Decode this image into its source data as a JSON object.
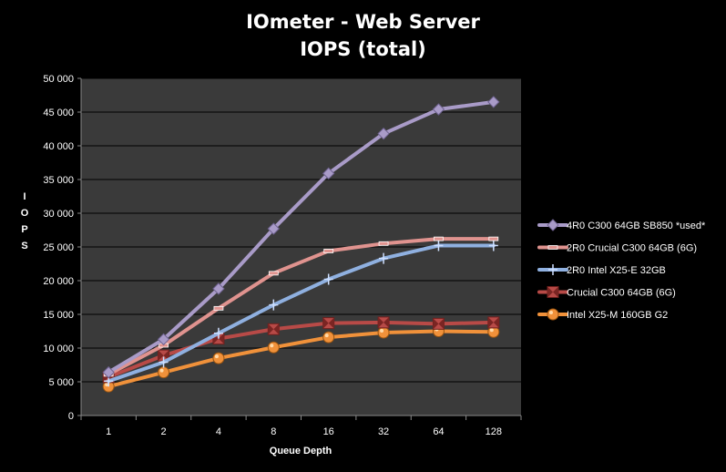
{
  "chart_data": {
    "type": "line",
    "title": "IOmeter - Web Server",
    "subtitle": "IOPS (total)",
    "xlabel": "Queue Depth",
    "ylabel": "IOPS",
    "categories": [
      "1",
      "2",
      "4",
      "8",
      "16",
      "32",
      "64",
      "128"
    ],
    "ylim": [
      0,
      50000
    ],
    "yticks": [
      0,
      5000,
      10000,
      15000,
      20000,
      25000,
      30000,
      35000,
      40000,
      45000,
      50000
    ],
    "ytick_labels": [
      "0",
      "5 000",
      "10 000",
      "15 000",
      "20 000",
      "25 000",
      "30 000",
      "35 000",
      "40 000",
      "45 000",
      "50 000"
    ],
    "grid": true,
    "legend_position": "right",
    "plot_background": "#3a3a3a",
    "series": [
      {
        "name": "4R0 C300 64GB SB850 *used*",
        "color": "#a99bc8",
        "marker": "diamond",
        "values": [
          6400,
          11300,
          18800,
          27700,
          35900,
          41800,
          45400,
          46500
        ]
      },
      {
        "name": "2R0 Crucial C300 64GB (6G)",
        "color": "#e0938f",
        "marker": "dash",
        "values": [
          6100,
          10400,
          15900,
          21100,
          24400,
          25500,
          26200,
          26200
        ]
      },
      {
        "name": "2R0 Intel X25-E 32GB",
        "color": "#8fb0e0",
        "marker": "plus",
        "values": [
          5100,
          7900,
          12200,
          16400,
          20200,
          23300,
          25200,
          25200
        ]
      },
      {
        "name": "Crucial C300 64GB (6G)",
        "color": "#b84a47",
        "marker": "bowtie",
        "values": [
          5700,
          8900,
          11400,
          12800,
          13700,
          13800,
          13600,
          13800
        ]
      },
      {
        "name": "Intel X25-M 160GB G2",
        "color": "#f0913a",
        "marker": "circle",
        "values": [
          4300,
          6400,
          8500,
          10100,
          11600,
          12300,
          12500,
          12400
        ]
      }
    ]
  }
}
